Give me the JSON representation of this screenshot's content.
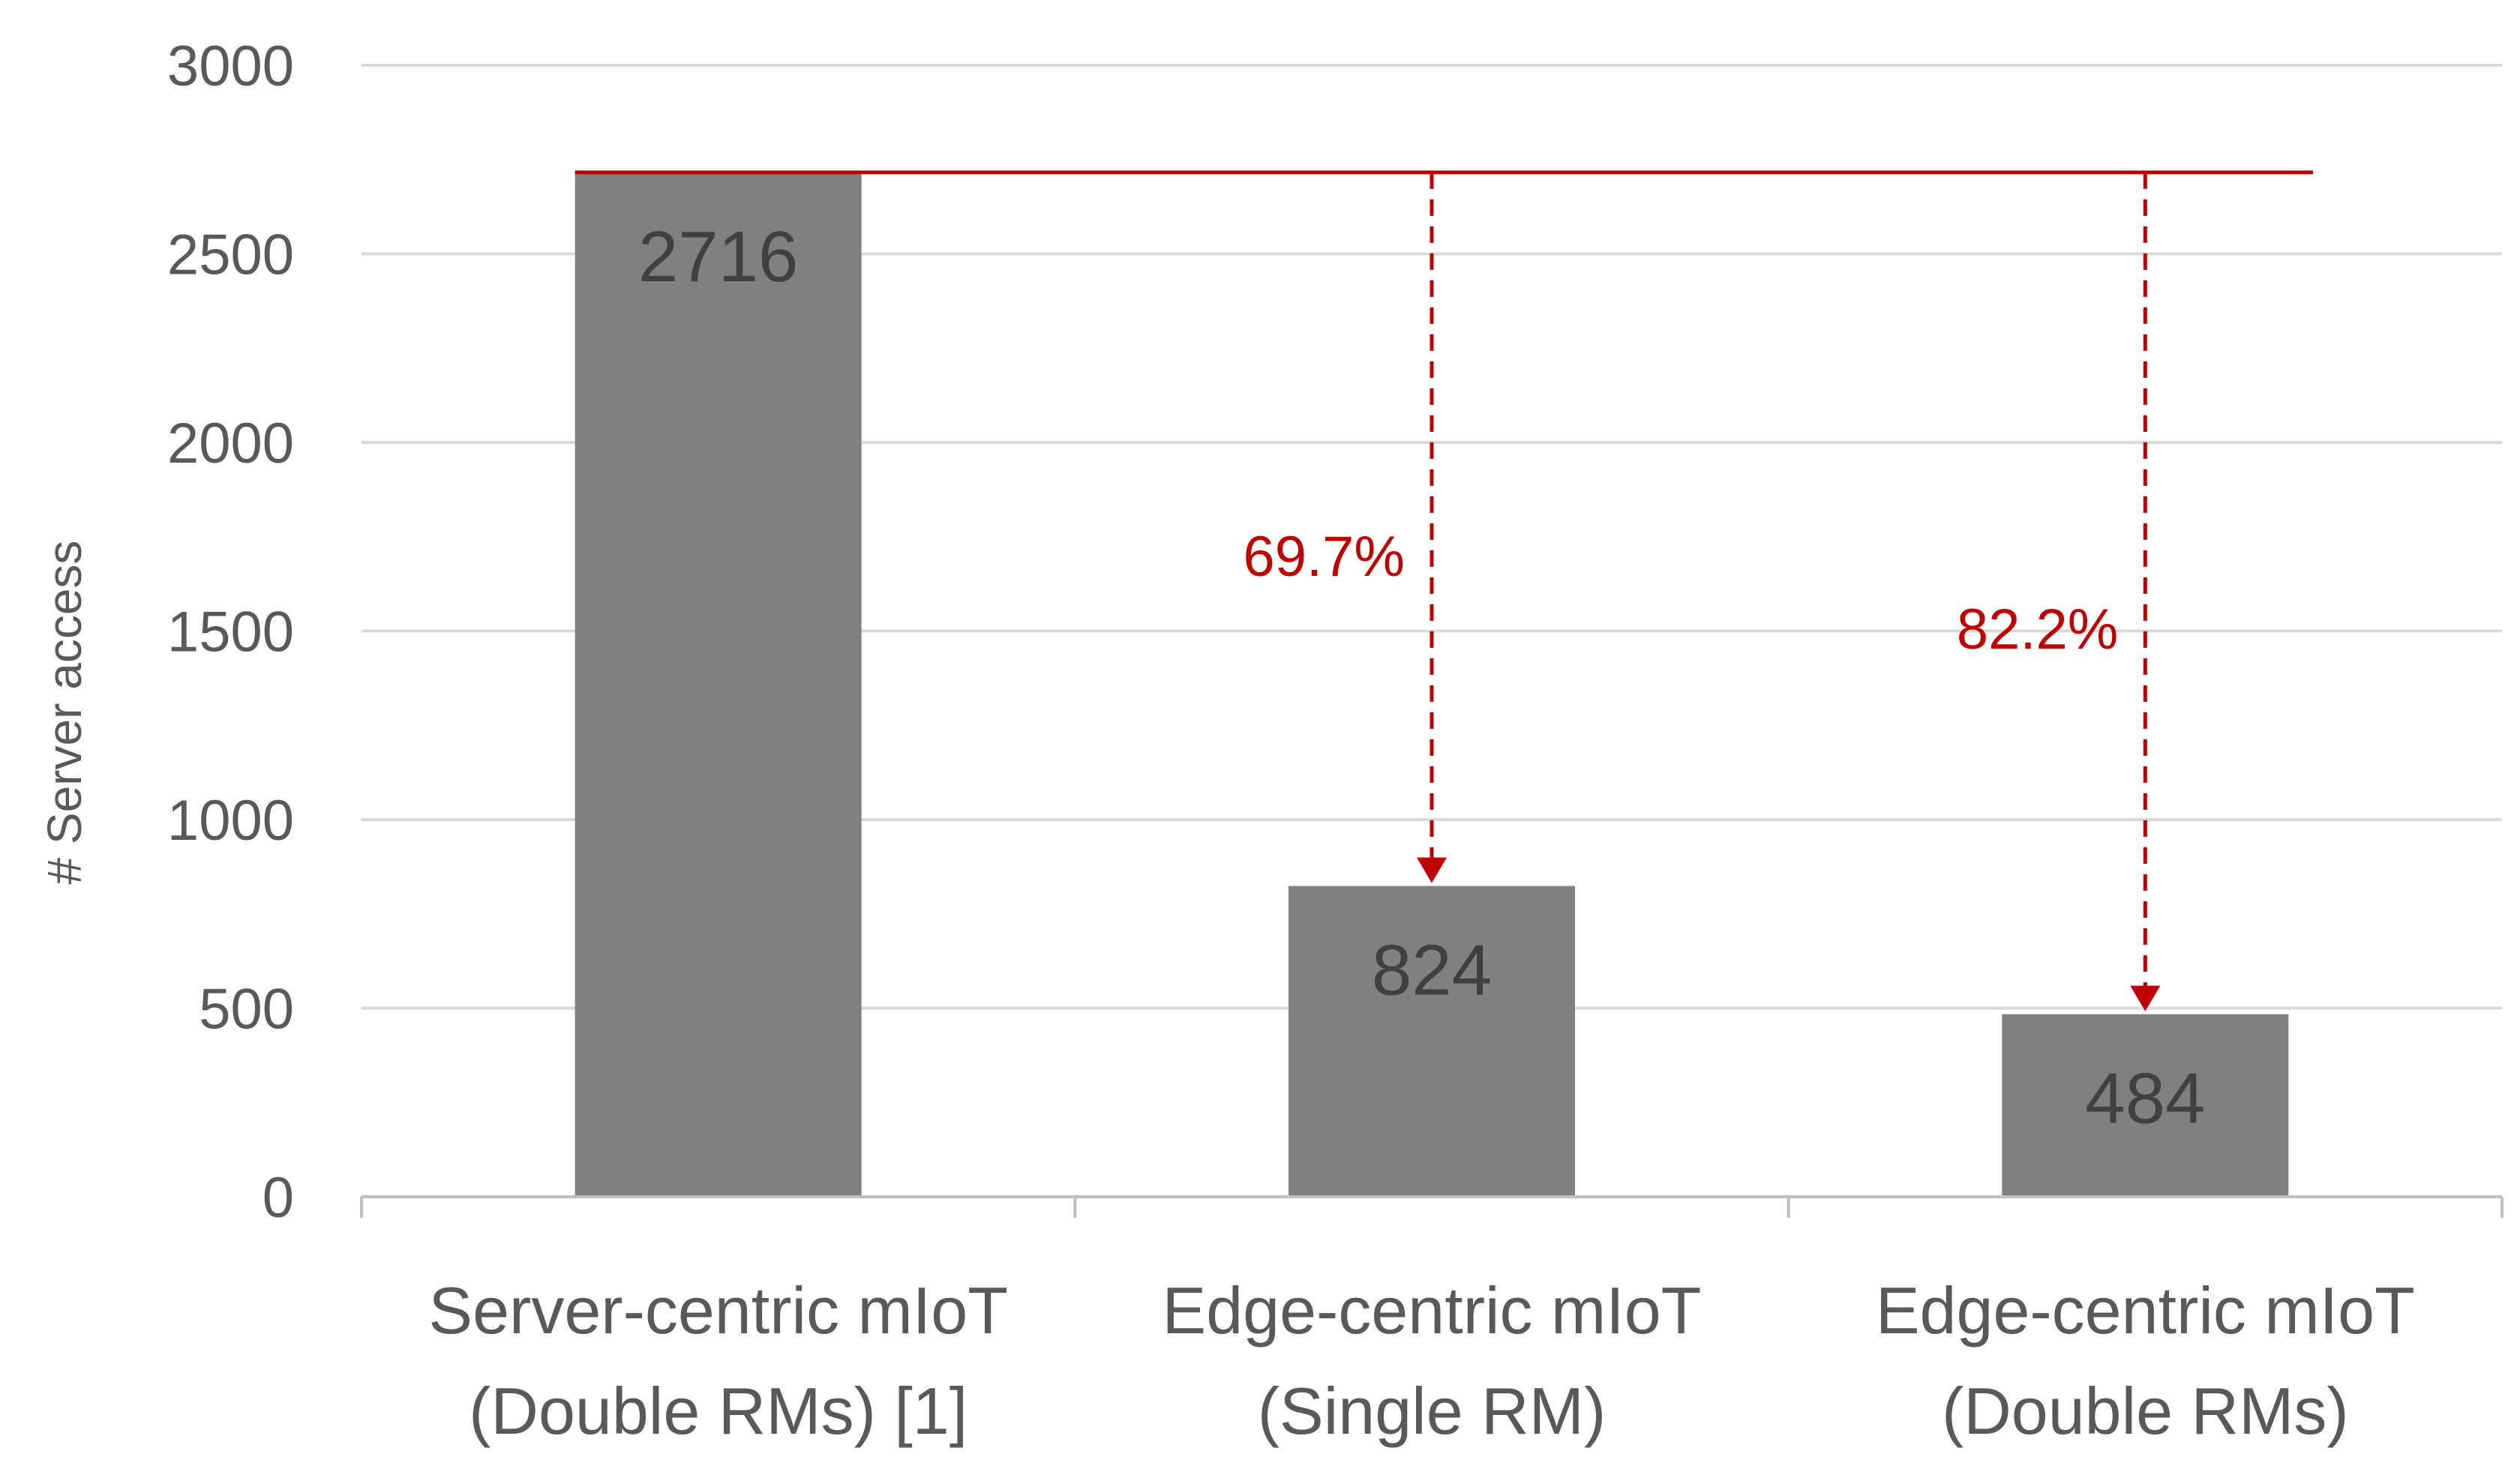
{
  "chart_data": {
    "type": "bar",
    "title": "",
    "xlabel": "",
    "ylabel": "# Server access",
    "ylim": [
      0,
      3000
    ],
    "yticks": [
      0,
      500,
      1000,
      1500,
      2000,
      2500,
      3000
    ],
    "grid": true,
    "categories": [
      [
        "Server-centric mIoT",
        "(Double RMs) [1]"
      ],
      [
        "Edge-centric mIoT",
        "(Single RM)"
      ],
      [
        "Edge-centric mIoT",
        "(Double RMs)"
      ]
    ],
    "values": [
      2716,
      824,
      484
    ],
    "data_labels": [
      "2716",
      "824",
      "484"
    ],
    "reference_line": 2716,
    "annotations": [
      {
        "category_index": 1,
        "from": 2716,
        "to": 824,
        "label": "69.7%"
      },
      {
        "category_index": 2,
        "from": 2716,
        "to": 484,
        "label": "82.2%"
      }
    ],
    "colors": {
      "bar": "#808080",
      "grid": "#d9d9d9",
      "axis": "#bfbfbf",
      "annotation": "#c00000",
      "text": "#595959"
    }
  }
}
